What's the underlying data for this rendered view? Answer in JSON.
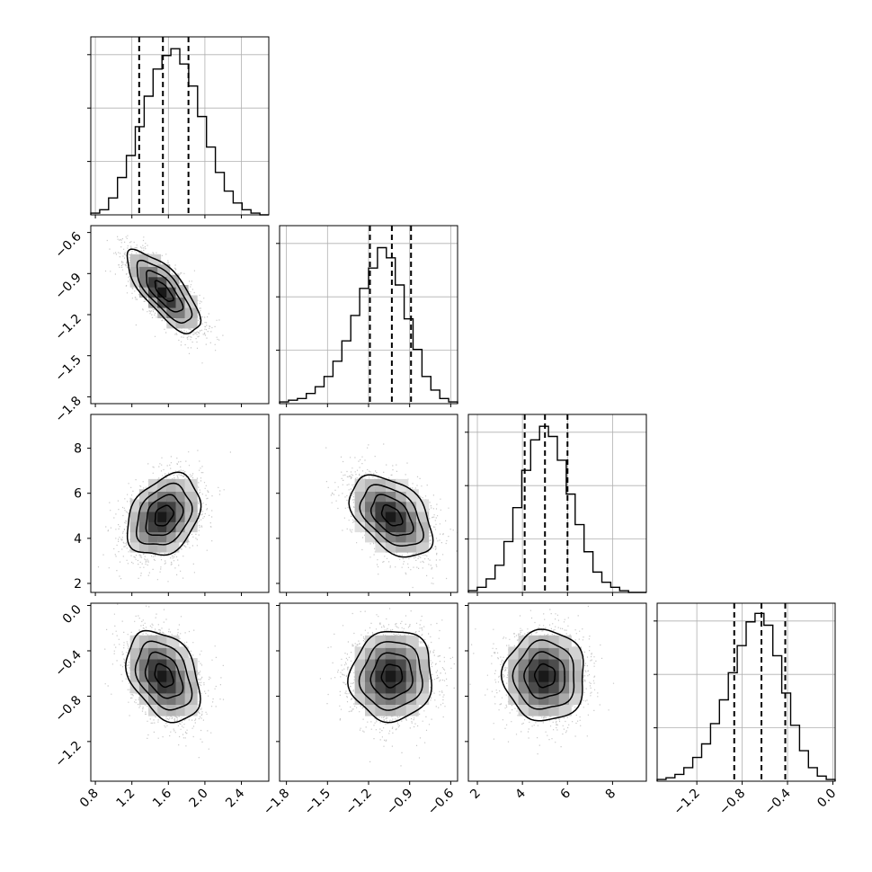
{
  "chart_data": {
    "type": "corner",
    "parameters": [
      {
        "mean": 1.55,
        "sd": 0.2,
        "range": [
          0.75,
          2.7
        ],
        "quantiles": [
          1.28,
          1.54,
          1.82
        ],
        "ticks": [
          "0.8",
          "1.2",
          "1.6",
          "2.0",
          "2.4"
        ],
        "tick_values": [
          0.8,
          1.2,
          1.6,
          2.0,
          2.4
        ]
      },
      {
        "mean": -1.03,
        "sd": 0.15,
        "range": [
          -1.85,
          -0.55
        ],
        "quantiles": [
          -1.19,
          -1.03,
          -0.89
        ],
        "ticks": [
          "−1.8",
          "−1.5",
          "−1.2",
          "−0.9",
          "−0.6"
        ],
        "tick_values": [
          -1.8,
          -1.5,
          -1.2,
          -0.9,
          -0.6
        ]
      },
      {
        "mean": 5.0,
        "sd": 0.9,
        "range": [
          1.6,
          9.5
        ],
        "quantiles": [
          4.1,
          5.0,
          6.0
        ],
        "ticks": [
          "2",
          "4",
          "6",
          "8"
        ],
        "tick_values": [
          2,
          4,
          6,
          8
        ]
      },
      {
        "mean": -0.62,
        "sd": 0.2,
        "range": [
          -1.55,
          0.02
        ],
        "quantiles": [
          -0.87,
          -0.63,
          -0.42
        ],
        "ticks": [
          "−1.2",
          "−0.8",
          "−0.4",
          "0.0"
        ],
        "tick_values": [
          -1.2,
          -0.8,
          -0.4,
          0.0
        ]
      }
    ],
    "correlations": {
      "1-0": -0.75,
      "2-0": 0.3,
      "2-1": -0.45,
      "3-0": -0.35,
      "3-1": 0.05,
      "3-2": 0.0
    },
    "histograms": [
      [
        1,
        3,
        10,
        22,
        35,
        52,
        70,
        86,
        94,
        98,
        89,
        76,
        58,
        40,
        25,
        14,
        7,
        3,
        1,
        0
      ],
      [
        1,
        2,
        3,
        6,
        10,
        16,
        25,
        37,
        52,
        68,
        80,
        92,
        86,
        70,
        50,
        32,
        16,
        8,
        3,
        1
      ],
      [
        1,
        3,
        8,
        16,
        30,
        50,
        72,
        90,
        98,
        92,
        78,
        58,
        40,
        24,
        12,
        6,
        3,
        1,
        0,
        0
      ],
      [
        1,
        2,
        4,
        8,
        14,
        22,
        34,
        48,
        64,
        80,
        94,
        99,
        92,
        74,
        52,
        33,
        18,
        8,
        3,
        1
      ]
    ],
    "hist_ylim": [
      0,
      105
    ],
    "histogram_ytick_fractions": [
      0.3333,
      0.6667,
      1.0
    ],
    "contour_levels_sigma": [
      0.5,
      1.0,
      1.5,
      2.0
    ],
    "grid": true
  }
}
